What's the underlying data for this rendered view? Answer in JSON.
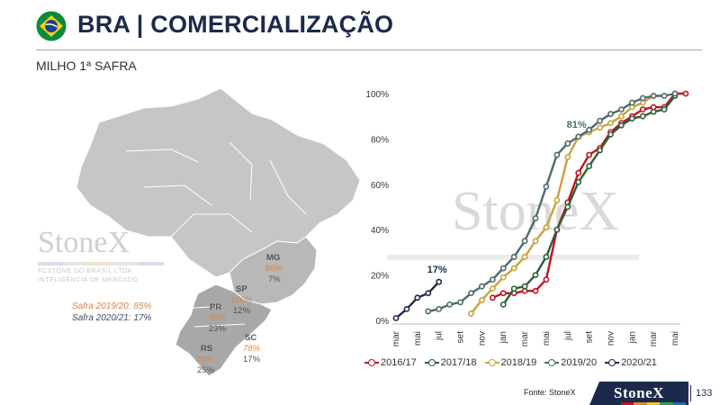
{
  "header": {
    "title": "BRA | COMERCIALIZAÇÃO",
    "subtitle": "MILHO 1ª SAFRA",
    "flag_icon": "brazil-flag-icon"
  },
  "map": {
    "watermark_brand": "StoneX",
    "watermark_line1": "FCSTONE DO BRASIL LTDA.",
    "watermark_line2": "INTELIGÊNCIA DE MERCADO",
    "legend": {
      "safra_1920": "Safra 2019/20: 85%",
      "safra_2021": "Safra 2020/21: 17%"
    },
    "states": [
      {
        "name": "MG",
        "v1920": "85%",
        "v2021": "7%"
      },
      {
        "name": "SP",
        "v1920": "100%",
        "v2021": "12%"
      },
      {
        "name": "PR",
        "v1920": "90%",
        "v2021": "23%"
      },
      {
        "name": "SC",
        "v1920": "78%",
        "v2021": "17%"
      },
      {
        "name": "RS",
        "v1920": "80%",
        "v2021": "25%"
      }
    ],
    "colors": {
      "land": "#c6c6c6",
      "border": "#ffffff",
      "south": "#a8a8a8"
    }
  },
  "chart_data": {
    "type": "line",
    "categories": [
      "mar",
      "mai",
      "jul",
      "set",
      "nov",
      "jan",
      "mar",
      "mai",
      "jul",
      "set",
      "nov",
      "jan",
      "mar",
      "mai"
    ],
    "ylim": [
      0,
      100
    ],
    "yticks": [
      "0%",
      "20%",
      "40%",
      "60%",
      "80%",
      "100%"
    ],
    "watermark": "StoneX",
    "series": [
      {
        "name": "2016/17",
        "color": "#c0141c",
        "points": [
          [
            4.5,
            10
          ],
          [
            5,
            12
          ],
          [
            5.5,
            12
          ],
          [
            6,
            13
          ],
          [
            6.5,
            13
          ],
          [
            7,
            18
          ],
          [
            7.5,
            40
          ],
          [
            8,
            52
          ],
          [
            8.5,
            65
          ],
          [
            9,
            73
          ],
          [
            9.5,
            76
          ],
          [
            10,
            83
          ],
          [
            10.5,
            87
          ],
          [
            11,
            90
          ],
          [
            11.5,
            93
          ],
          [
            12,
            94
          ],
          [
            12.5,
            94
          ],
          [
            13,
            100
          ],
          [
            13.5,
            100
          ]
        ]
      },
      {
        "name": "2017/18",
        "color": "#2e5e3a",
        "points": [
          [
            5,
            7
          ],
          [
            5.5,
            14
          ],
          [
            6,
            15
          ],
          [
            6.5,
            20
          ],
          [
            7,
            28
          ],
          [
            7.5,
            40
          ],
          [
            8,
            50
          ],
          [
            8.5,
            61
          ],
          [
            9,
            68
          ],
          [
            9.5,
            75
          ],
          [
            10,
            82
          ],
          [
            10.5,
            86
          ],
          [
            11,
            89
          ],
          [
            11.5,
            90
          ],
          [
            12,
            92
          ],
          [
            12.5,
            93
          ],
          [
            13,
            99
          ]
        ]
      },
      {
        "name": "2018/19",
        "color": "#c9a33a",
        "points": [
          [
            3.5,
            3
          ],
          [
            4,
            9
          ],
          [
            4.5,
            14
          ],
          [
            5,
            19
          ],
          [
            5.5,
            23
          ],
          [
            6,
            28
          ],
          [
            6.5,
            35
          ],
          [
            7,
            41
          ],
          [
            7.5,
            53
          ],
          [
            8,
            72
          ],
          [
            8.5,
            81
          ],
          [
            9,
            83
          ],
          [
            9.5,
            85
          ],
          [
            10,
            87
          ],
          [
            10.5,
            90
          ],
          [
            11,
            94
          ],
          [
            11.5,
            96
          ],
          [
            12,
            99
          ]
        ]
      },
      {
        "name": "2019/20",
        "color": "#4e6a6a",
        "points": [
          [
            1.5,
            4
          ],
          [
            2,
            5
          ],
          [
            2.5,
            7
          ],
          [
            3,
            8
          ],
          [
            3.5,
            12
          ],
          [
            4,
            15
          ],
          [
            4.5,
            18
          ],
          [
            5,
            23
          ],
          [
            5.5,
            28
          ],
          [
            6,
            35
          ],
          [
            6.5,
            45
          ],
          [
            7,
            59
          ],
          [
            7.5,
            73
          ],
          [
            8,
            78
          ],
          [
            8.5,
            81
          ],
          [
            9,
            84
          ],
          [
            9.5,
            88
          ],
          [
            10,
            91
          ],
          [
            10.5,
            93
          ],
          [
            11,
            96
          ],
          [
            11.5,
            98
          ],
          [
            12,
            99
          ],
          [
            12.5,
            99
          ],
          [
            13,
            100
          ]
        ]
      },
      {
        "name": "2020/21",
        "color": "#1b2a4a",
        "points": [
          [
            0,
            1
          ],
          [
            0.5,
            5
          ],
          [
            1,
            10
          ],
          [
            1.5,
            12
          ],
          [
            2,
            17
          ]
        ]
      }
    ],
    "annotations": [
      {
        "text": "81%",
        "x": 8.5,
        "y": 81,
        "color": "#4e6a6a"
      },
      {
        "text": "17%",
        "x": 2,
        "y": 17,
        "color": "#1b2a4a"
      }
    ]
  },
  "footer": {
    "source": "Fonte: StoneX",
    "brand": "StoneX",
    "page": "133"
  }
}
